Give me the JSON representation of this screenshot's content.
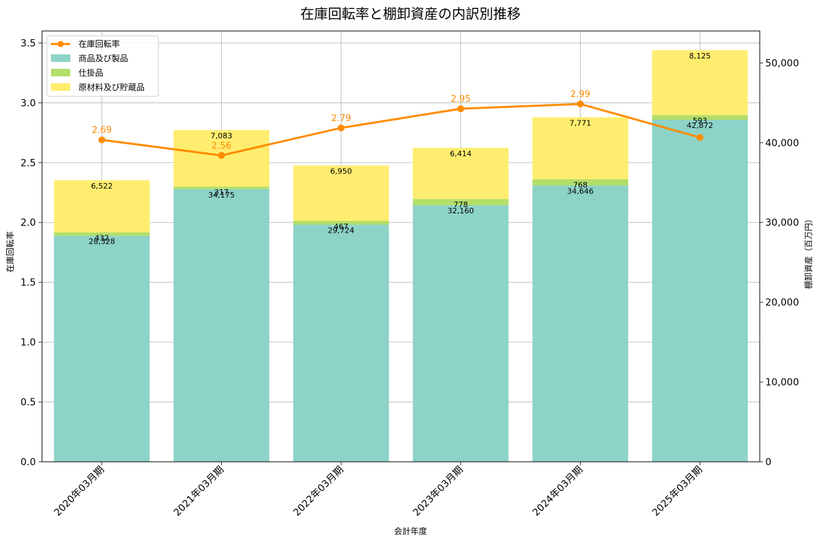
{
  "chart_data": {
    "type": "bar",
    "stacked": true,
    "title": "在庫回転率と棚卸資産の内訳別推移",
    "xlabel": "会計年度",
    "ylabel_left": "在庫回転率",
    "ylabel_right": "棚卸資産（百万円）",
    "categories": [
      "2020年03月期",
      "2021年03月期",
      "2022年03月期",
      "2023年03月期",
      "2024年03月期",
      "2025年03月期"
    ],
    "series": [
      {
        "name": "商品及び製品",
        "axis": "right",
        "color": "#8dd3c7",
        "values": [
          28328,
          34175,
          29724,
          32160,
          34646,
          42872
        ],
        "labels": [
          "28,328",
          "34,175",
          "29,724",
          "32,160",
          "34,646",
          "42,872"
        ]
      },
      {
        "name": "仕掛品",
        "axis": "right",
        "color": "#b3de69",
        "values": [
          432,
          317,
          467,
          778,
          768,
          593
        ],
        "labels": [
          "432",
          "317",
          "467",
          "778",
          "768",
          "593"
        ]
      },
      {
        "name": "原材料及び貯蔵品",
        "axis": "right",
        "color": "#ffed6f",
        "values": [
          6522,
          7083,
          6950,
          6414,
          7771,
          8125
        ],
        "labels": [
          "6,522",
          "7,083",
          "6,950",
          "6,414",
          "7,771",
          "8,125"
        ]
      }
    ],
    "line": {
      "name": "在庫回転率",
      "axis": "left",
      "color": "#ff8c00",
      "values": [
        2.69,
        2.56,
        2.79,
        2.95,
        2.99,
        2.71
      ],
      "labels": [
        "2.69",
        "2.56",
        "2.79",
        "2.95",
        "2.99",
        ""
      ]
    },
    "ylim_left": [
      0,
      3.6
    ],
    "yticks_left": [
      "0.0",
      "0.5",
      "1.0",
      "1.5",
      "2.0",
      "2.5",
      "3.0",
      "3.5"
    ],
    "ylim_right": [
      0,
      54000
    ],
    "yticks_right": [
      "0",
      "10,000",
      "20,000",
      "30,000",
      "40,000",
      "50,000"
    ],
    "grid": true,
    "legend_position": "top-left"
  }
}
